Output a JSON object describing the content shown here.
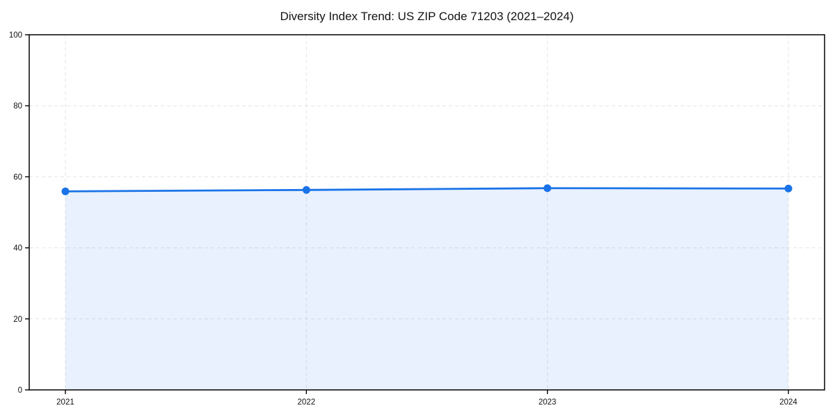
{
  "chart_data": {
    "type": "area",
    "title": "Diversity Index Trend: US ZIP Code 71203 (2021–2024)",
    "series_name": "Diversity Index",
    "x": [
      2021,
      2022,
      2023,
      2024
    ],
    "values": [
      55.9,
      56.3,
      56.8,
      56.7
    ],
    "xticks": [
      2021,
      2022,
      2023,
      2024
    ],
    "yticks": [
      0,
      20,
      40,
      60,
      80,
      100
    ],
    "xlim": [
      2020.85,
      2024.15
    ],
    "ylim": [
      0,
      100
    ],
    "xlabel": "",
    "ylabel": "",
    "grid": "dashed",
    "legend": "none",
    "line_color": "#1a73e8",
    "fill_color": "rgba(26,115,232,0.10)",
    "grid_color": "#e4e4e4",
    "axis_color": "#000000",
    "tick_label_color": "#111111"
  }
}
